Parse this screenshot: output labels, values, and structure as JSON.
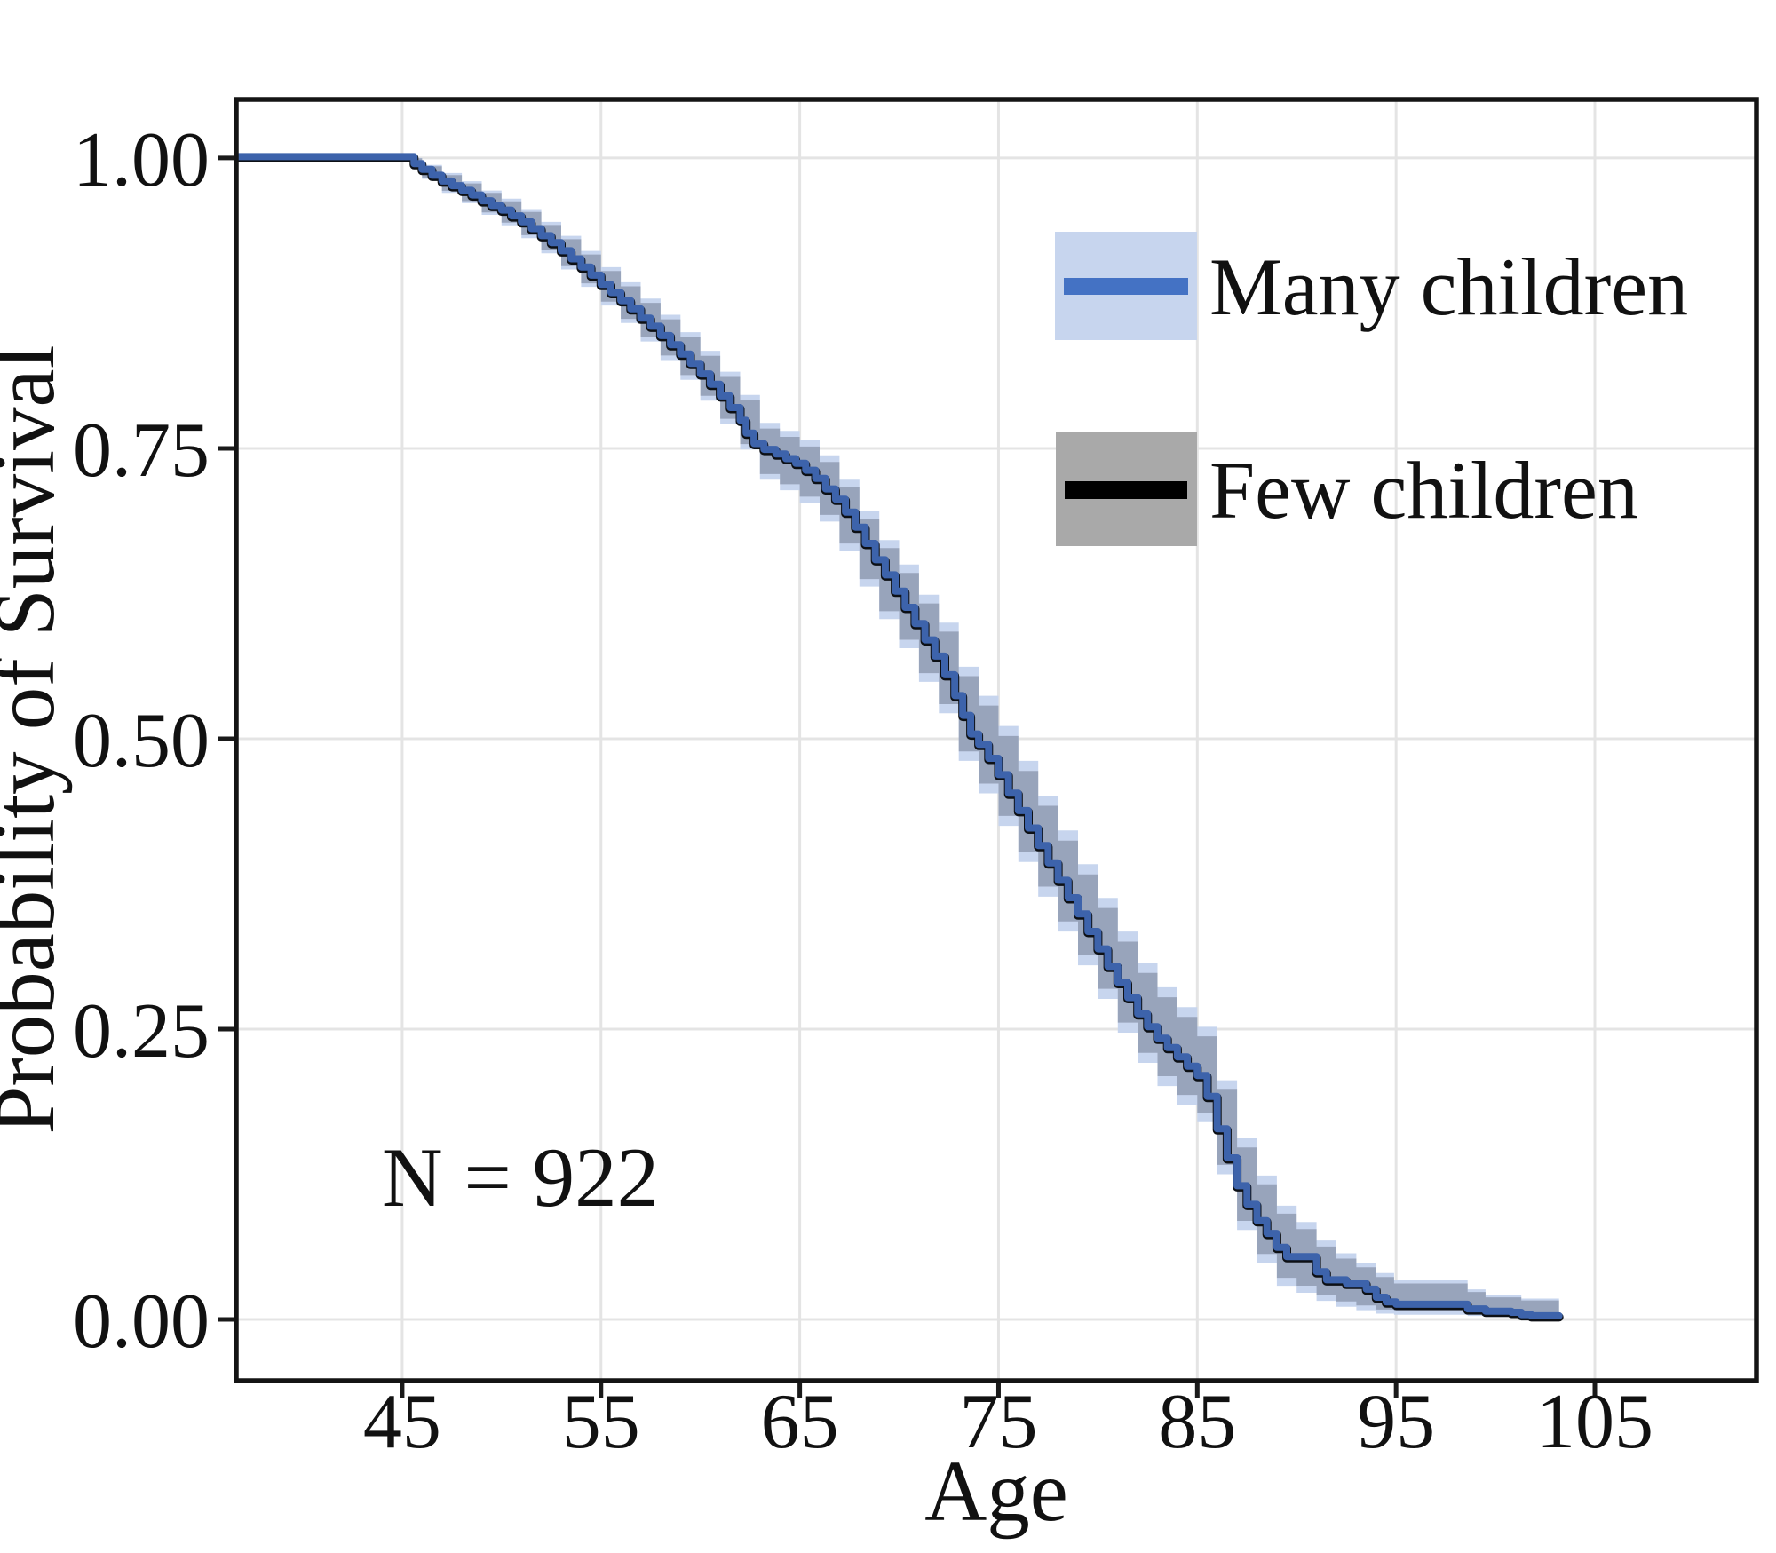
{
  "figure": {
    "n_annotation": "N = 922",
    "x_axis_title": "Age",
    "y_axis_title": "Probability of Survival",
    "background_color": "#ffffff",
    "panel_border_color": "#141414",
    "grid_color": "#e4e4e4",
    "tick_color": "#1a1a1a"
  },
  "legend": {
    "position": "upper-right-inside-panel",
    "items": [
      {
        "id": "many",
        "label": "Many children",
        "line_color": "#4472c4",
        "band_color": "#c7d5ee"
      },
      {
        "id": "few",
        "label": "Few children",
        "line_color": "#000000",
        "band_color": "#a9a9a9"
      }
    ]
  },
  "chart_data": {
    "type": "line",
    "subtype": "kaplan_meier_survival_step",
    "title": "",
    "xlabel": "Age",
    "ylabel": "Probability of Survival",
    "grid": true,
    "legend_position": "upper right inside",
    "sample_size": 922,
    "annotation": {
      "text": "N = 922",
      "x_age": 52.5,
      "y_prob": 0.12
    },
    "xlim": [
      36.65,
      113.13
    ],
    "ylim": [
      -0.0527,
      1.0504
    ],
    "x_ticks": [
      {
        "value": 45,
        "label": "45"
      },
      {
        "value": 55,
        "label": "55"
      },
      {
        "value": 65,
        "label": "65"
      },
      {
        "value": 75,
        "label": "75"
      },
      {
        "value": 85,
        "label": "85"
      },
      {
        "value": 95,
        "label": "95"
      },
      {
        "value": 105,
        "label": "105"
      }
    ],
    "y_ticks": [
      {
        "value": 0.0,
        "label": "0.00"
      },
      {
        "value": 0.25,
        "label": "0.25"
      },
      {
        "value": 0.5,
        "label": "0.50"
      },
      {
        "value": 0.75,
        "label": "0.75"
      },
      {
        "value": 1.0,
        "label": "1.00"
      }
    ],
    "series": [
      {
        "name": "Many children",
        "line_color": "#3d63ab",
        "band_color": "#c7d5ee",
        "band_opacity": 1.0,
        "points": [
          [
            36.65,
            1.0
          ],
          [
            45.0,
            1.0
          ],
          [
            45.6,
            0.994
          ],
          [
            46.0,
            0.989
          ],
          [
            46.5,
            0.984
          ],
          [
            47.0,
            0.979
          ],
          [
            47.5,
            0.975
          ],
          [
            48.0,
            0.971
          ],
          [
            48.5,
            0.967
          ],
          [
            49.0,
            0.962
          ],
          [
            49.5,
            0.958
          ],
          [
            50.0,
            0.954
          ],
          [
            50.5,
            0.949
          ],
          [
            51.0,
            0.944
          ],
          [
            51.5,
            0.938
          ],
          [
            52.0,
            0.932
          ],
          [
            52.5,
            0.926
          ],
          [
            53.0,
            0.919
          ],
          [
            53.5,
            0.912
          ],
          [
            54.0,
            0.905
          ],
          [
            54.5,
            0.898
          ],
          [
            55.0,
            0.89
          ],
          [
            55.5,
            0.883
          ],
          [
            56.0,
            0.876
          ],
          [
            56.5,
            0.869
          ],
          [
            57.0,
            0.861
          ],
          [
            57.5,
            0.854
          ],
          [
            58.0,
            0.846
          ],
          [
            58.5,
            0.838
          ],
          [
            59.0,
            0.83
          ],
          [
            59.5,
            0.822
          ],
          [
            60.0,
            0.813
          ],
          [
            60.5,
            0.804
          ],
          [
            61.0,
            0.794
          ],
          [
            61.5,
            0.784
          ],
          [
            62.0,
            0.773
          ],
          [
            62.3,
            0.762
          ],
          [
            62.7,
            0.753
          ],
          [
            63.2,
            0.748
          ],
          [
            63.8,
            0.744
          ],
          [
            64.3,
            0.74
          ],
          [
            64.8,
            0.736
          ],
          [
            65.3,
            0.73
          ],
          [
            65.8,
            0.723
          ],
          [
            66.3,
            0.714
          ],
          [
            66.8,
            0.705
          ],
          [
            67.3,
            0.694
          ],
          [
            67.8,
            0.681
          ],
          [
            68.3,
            0.667
          ],
          [
            68.8,
            0.653
          ],
          [
            69.3,
            0.64
          ],
          [
            69.8,
            0.626
          ],
          [
            70.3,
            0.612
          ],
          [
            70.8,
            0.598
          ],
          [
            71.3,
            0.584
          ],
          [
            71.8,
            0.57
          ],
          [
            72.3,
            0.554
          ],
          [
            72.8,
            0.536
          ],
          [
            73.2,
            0.519
          ],
          [
            73.6,
            0.503
          ],
          [
            74.0,
            0.494
          ],
          [
            74.5,
            0.482
          ],
          [
            75.0,
            0.468
          ],
          [
            75.5,
            0.452
          ],
          [
            76.0,
            0.437
          ],
          [
            76.5,
            0.422
          ],
          [
            77.0,
            0.407
          ],
          [
            77.5,
            0.392
          ],
          [
            78.0,
            0.377
          ],
          [
            78.5,
            0.362
          ],
          [
            79.0,
            0.348
          ],
          [
            79.5,
            0.333
          ],
          [
            80.0,
            0.318
          ],
          [
            80.5,
            0.303
          ],
          [
            81.0,
            0.289
          ],
          [
            81.5,
            0.276
          ],
          [
            82.0,
            0.262
          ],
          [
            82.5,
            0.251
          ],
          [
            83.0,
            0.241
          ],
          [
            83.5,
            0.233
          ],
          [
            84.0,
            0.225
          ],
          [
            84.5,
            0.217
          ],
          [
            85.0,
            0.209
          ],
          [
            85.5,
            0.191
          ],
          [
            86.0,
            0.163
          ],
          [
            86.5,
            0.138
          ],
          [
            87.0,
            0.114
          ],
          [
            87.5,
            0.098
          ],
          [
            88.0,
            0.084
          ],
          [
            88.5,
            0.073
          ],
          [
            89.0,
            0.061
          ],
          [
            89.5,
            0.053
          ],
          [
            91.0,
            0.04
          ],
          [
            91.5,
            0.033
          ],
          [
            92.5,
            0.03
          ],
          [
            93.5,
            0.025
          ],
          [
            94.0,
            0.018
          ],
          [
            94.5,
            0.014
          ],
          [
            95.0,
            0.012
          ],
          [
            98.3,
            0.012
          ],
          [
            98.6,
            0.008
          ],
          [
            99.5,
            0.006
          ],
          [
            100.8,
            0.005
          ],
          [
            101.3,
            0.003
          ],
          [
            101.8,
            0.002
          ],
          [
            103.2,
            0.002
          ]
        ],
        "band": [
          [
            45.0,
            0.998,
            1.0
          ],
          [
            46.0,
            0.982,
            0.994
          ],
          [
            47.0,
            0.97,
            0.987
          ],
          [
            48.0,
            0.961,
            0.98
          ],
          [
            49.0,
            0.951,
            0.972
          ],
          [
            50.0,
            0.942,
            0.965
          ],
          [
            51.0,
            0.931,
            0.956
          ],
          [
            52.0,
            0.918,
            0.945
          ],
          [
            53.0,
            0.904,
            0.933
          ],
          [
            54.0,
            0.889,
            0.92
          ],
          [
            55.0,
            0.873,
            0.906
          ],
          [
            56.0,
            0.858,
            0.893
          ],
          [
            57.0,
            0.842,
            0.879
          ],
          [
            58.0,
            0.826,
            0.865
          ],
          [
            59.0,
            0.809,
            0.85
          ],
          [
            60.0,
            0.791,
            0.834
          ],
          [
            61.0,
            0.771,
            0.816
          ],
          [
            62.0,
            0.749,
            0.796
          ],
          [
            63.0,
            0.723,
            0.772
          ],
          [
            64.0,
            0.714,
            0.765
          ],
          [
            65.0,
            0.703,
            0.757
          ],
          [
            66.0,
            0.687,
            0.744
          ],
          [
            67.0,
            0.662,
            0.723
          ],
          [
            68.0,
            0.631,
            0.696
          ],
          [
            69.0,
            0.603,
            0.671
          ],
          [
            70.0,
            0.578,
            0.65
          ],
          [
            71.0,
            0.549,
            0.624
          ],
          [
            72.0,
            0.522,
            0.6
          ],
          [
            73.0,
            0.481,
            0.562
          ],
          [
            74.0,
            0.453,
            0.537
          ],
          [
            75.0,
            0.425,
            0.511
          ],
          [
            76.0,
            0.394,
            0.481
          ],
          [
            77.0,
            0.364,
            0.451
          ],
          [
            78.0,
            0.334,
            0.421
          ],
          [
            79.0,
            0.305,
            0.392
          ],
          [
            80.0,
            0.276,
            0.363
          ],
          [
            81.0,
            0.247,
            0.334
          ],
          [
            82.0,
            0.221,
            0.307
          ],
          [
            83.0,
            0.201,
            0.286
          ],
          [
            84.0,
            0.185,
            0.269
          ],
          [
            85.0,
            0.17,
            0.252
          ],
          [
            86.0,
            0.125,
            0.206
          ],
          [
            87.0,
            0.077,
            0.156
          ],
          [
            88.0,
            0.049,
            0.124
          ],
          [
            89.0,
            0.029,
            0.098
          ],
          [
            90.0,
            0.023,
            0.084
          ],
          [
            91.0,
            0.016,
            0.068
          ],
          [
            92.0,
            0.011,
            0.057
          ],
          [
            93.0,
            0.008,
            0.049
          ],
          [
            94.0,
            0.005,
            0.04
          ],
          [
            94.9,
            0.004,
            0.034
          ],
          [
            98.2,
            0.004,
            0.034
          ],
          [
            98.6,
            0.003,
            0.026
          ],
          [
            99.5,
            0.002,
            0.021
          ],
          [
            101.3,
            0.002,
            0.018
          ],
          [
            103.2,
            0.002,
            0.017
          ]
        ]
      },
      {
        "name": "Few children",
        "line_color": "#0d1015",
        "band_color": "#8792a8",
        "band_opacity": 0.72,
        "band_from": "Many children",
        "band_inset_fraction": 0.1,
        "points": [
          [
            36.65,
            1.0
          ],
          [
            45.0,
            1.0
          ],
          [
            45.6,
            0.994
          ],
          [
            46.0,
            0.989
          ],
          [
            46.5,
            0.984
          ],
          [
            47.0,
            0.979
          ],
          [
            47.5,
            0.975
          ],
          [
            48.0,
            0.971
          ],
          [
            48.5,
            0.967
          ],
          [
            49.0,
            0.962
          ],
          [
            49.5,
            0.958
          ],
          [
            50.0,
            0.954
          ],
          [
            50.5,
            0.949
          ],
          [
            51.0,
            0.944
          ],
          [
            51.5,
            0.938
          ],
          [
            52.0,
            0.932
          ],
          [
            52.5,
            0.926
          ],
          [
            53.0,
            0.919
          ],
          [
            53.5,
            0.912
          ],
          [
            54.0,
            0.905
          ],
          [
            54.5,
            0.898
          ],
          [
            55.0,
            0.89
          ],
          [
            55.5,
            0.883
          ],
          [
            56.0,
            0.876
          ],
          [
            56.5,
            0.869
          ],
          [
            57.0,
            0.861
          ],
          [
            57.5,
            0.854
          ],
          [
            58.0,
            0.846
          ],
          [
            58.5,
            0.838
          ],
          [
            59.0,
            0.83
          ],
          [
            59.5,
            0.822
          ],
          [
            60.0,
            0.813
          ],
          [
            60.5,
            0.804
          ],
          [
            61.0,
            0.794
          ],
          [
            61.5,
            0.784
          ],
          [
            62.0,
            0.773
          ],
          [
            62.3,
            0.762
          ],
          [
            62.7,
            0.753
          ],
          [
            63.2,
            0.748
          ],
          [
            63.8,
            0.744
          ],
          [
            64.3,
            0.74
          ],
          [
            64.8,
            0.736
          ],
          [
            65.3,
            0.73
          ],
          [
            65.8,
            0.723
          ],
          [
            66.3,
            0.714
          ],
          [
            66.8,
            0.705
          ],
          [
            67.3,
            0.694
          ],
          [
            67.8,
            0.681
          ],
          [
            68.3,
            0.667
          ],
          [
            68.8,
            0.653
          ],
          [
            69.3,
            0.64
          ],
          [
            69.8,
            0.626
          ],
          [
            70.3,
            0.612
          ],
          [
            70.8,
            0.598
          ],
          [
            71.3,
            0.584
          ],
          [
            71.8,
            0.57
          ],
          [
            72.3,
            0.554
          ],
          [
            72.8,
            0.536
          ],
          [
            73.2,
            0.519
          ],
          [
            73.6,
            0.503
          ],
          [
            74.0,
            0.494
          ],
          [
            74.5,
            0.482
          ],
          [
            75.0,
            0.468
          ],
          [
            75.5,
            0.452
          ],
          [
            76.0,
            0.437
          ],
          [
            76.5,
            0.422
          ],
          [
            77.0,
            0.407
          ],
          [
            77.5,
            0.392
          ],
          [
            78.0,
            0.377
          ],
          [
            78.5,
            0.362
          ],
          [
            79.0,
            0.348
          ],
          [
            79.5,
            0.333
          ],
          [
            80.0,
            0.318
          ],
          [
            80.5,
            0.303
          ],
          [
            81.0,
            0.289
          ],
          [
            81.5,
            0.276
          ],
          [
            82.0,
            0.262
          ],
          [
            82.5,
            0.251
          ],
          [
            83.0,
            0.241
          ],
          [
            83.5,
            0.233
          ],
          [
            84.0,
            0.225
          ],
          [
            84.5,
            0.217
          ],
          [
            85.0,
            0.209
          ],
          [
            85.5,
            0.191
          ],
          [
            86.0,
            0.163
          ],
          [
            86.5,
            0.138
          ],
          [
            87.0,
            0.114
          ],
          [
            87.5,
            0.098
          ],
          [
            88.0,
            0.084
          ],
          [
            88.5,
            0.073
          ],
          [
            89.0,
            0.061
          ],
          [
            89.5,
            0.053
          ],
          [
            91.0,
            0.04
          ],
          [
            91.5,
            0.033
          ],
          [
            92.5,
            0.03
          ],
          [
            93.5,
            0.025
          ],
          [
            94.0,
            0.018
          ],
          [
            94.5,
            0.014
          ],
          [
            95.0,
            0.012
          ],
          [
            98.3,
            0.012
          ],
          [
            98.6,
            0.008
          ],
          [
            99.5,
            0.006
          ],
          [
            100.8,
            0.005
          ],
          [
            101.3,
            0.003
          ],
          [
            101.8,
            0.002
          ],
          [
            103.2,
            0.002
          ]
        ]
      }
    ]
  }
}
